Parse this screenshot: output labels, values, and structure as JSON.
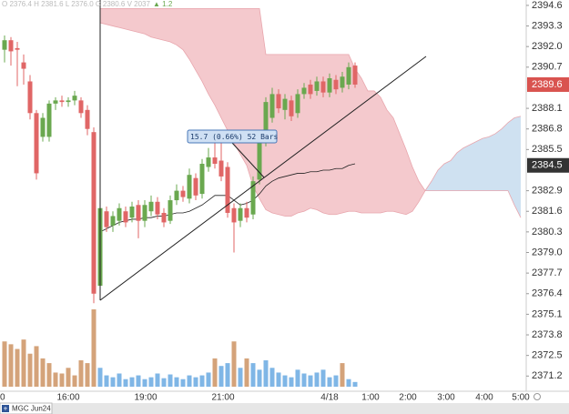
{
  "chart_data": {
    "type": "candlestick",
    "symbol": "MGC Jun24",
    "header": {
      "values": "O 2376.4  H 2381.6  L 2376.0  C 2380.6  V 2037",
      "change": "▲ 1.2"
    },
    "annotation": "15.7 (0.66%) 52 Bars",
    "up_color": "#6aa84f",
    "down_color": "#e06666",
    "candles": {
      "open": [
        2391.8,
        2392.4,
        2391.9,
        2391.0,
        2389.8,
        2387.8,
        2386.3,
        2386.3,
        2388.4,
        2388.6,
        2388.5,
        2388.6,
        2388.6,
        2388.0,
        2386.6,
        2376.9,
        2381.6,
        2380.7,
        2381.0,
        2381.6,
        2381.2,
        2382.0,
        2381.0,
        2381.6,
        2382.2,
        2381.5,
        2381.0,
        2382.3,
        2382.9,
        2382.4,
        2383.7,
        2382.7,
        2384.4,
        2385.0,
        2384.8,
        2384.4,
        2381.8,
        2381.0,
        2381.8,
        2381.4,
        2383.6,
        2386.0,
        2387.5,
        2389.0,
        2388.0,
        2388.6,
        2387.8,
        2389.0,
        2389.6,
        2389.2,
        2389.8,
        2389.1,
        2389.9,
        2389.4,
        2389.6,
        2390.8
      ],
      "high": [
        2392.7,
        2392.6,
        2392.3,
        2391.5,
        2390.2,
        2388.0,
        2387.8,
        2388.6,
        2388.8,
        2388.9,
        2388.8,
        2389.2,
        2388.8,
        2388.3,
        2386.9,
        2382.1,
        2381.9,
        2381.6,
        2382.1,
        2381.9,
        2382.2,
        2382.3,
        2382.3,
        2382.6,
        2382.5,
        2381.8,
        2382.6,
        2383.3,
        2383.2,
        2384.3,
        2384.0,
        2384.9,
        2385.6,
        2385.9,
        2386.0,
        2384.7,
        2382.1,
        2382.1,
        2382.2,
        2383.8,
        2386.3,
        2388.8,
        2389.4,
        2389.3,
        2389.0,
        2388.9,
        2389.3,
        2389.7,
        2389.9,
        2390.1,
        2390.1,
        2390.3,
        2390.2,
        2390.4,
        2391.0,
        2391.0
      ],
      "low": [
        2391.0,
        2390.8,
        2389.5,
        2389.6,
        2387.4,
        2383.6,
        2386.0,
        2386.0,
        2388.0,
        2388.2,
        2388.2,
        2388.3,
        2387.5,
        2386.4,
        2375.8,
        2376.0,
        2380.3,
        2380.3,
        2380.7,
        2380.6,
        2380.9,
        2379.9,
        2380.6,
        2381.3,
        2381.1,
        2380.6,
        2380.8,
        2382.0,
        2382.2,
        2382.1,
        2382.3,
        2382.4,
        2384.1,
        2384.3,
        2383.5,
        2381.2,
        2379.0,
        2380.6,
        2380.9,
        2381.1,
        2383.3,
        2385.7,
        2387.2,
        2387.8,
        2387.4,
        2387.3,
        2387.5,
        2388.7,
        2388.7,
        2388.9,
        2388.8,
        2388.8,
        2389.0,
        2389.1,
        2389.3,
        2389.4
      ],
      "close": [
        2392.4,
        2391.7,
        2391.8,
        2390.6,
        2387.8,
        2384.0,
        2387.5,
        2388.4,
        2388.6,
        2388.5,
        2388.6,
        2388.9,
        2387.8,
        2386.8,
        2376.4,
        2381.8,
        2380.6,
        2381.3,
        2381.8,
        2380.9,
        2381.9,
        2381.0,
        2382.0,
        2382.2,
        2381.4,
        2380.9,
        2382.3,
        2382.9,
        2382.5,
        2383.9,
        2382.6,
        2384.6,
        2385.0,
        2384.6,
        2383.8,
        2381.5,
        2380.9,
        2381.8,
        2381.2,
        2383.5,
        2386.0,
        2388.5,
        2389.0,
        2388.1,
        2388.7,
        2387.6,
        2389.0,
        2389.4,
        2389.0,
        2389.8,
        2389.1,
        2390.0,
        2389.3,
        2390.1,
        2390.7,
        2389.6
      ]
    },
    "volume": {
      "values": [
        48,
        45,
        40,
        50,
        35,
        43,
        30,
        25,
        15,
        14,
        20,
        12,
        28,
        25,
        82,
        20,
        12,
        10,
        14,
        8,
        10,
        12,
        8,
        10,
        14,
        9,
        13,
        10,
        8,
        12,
        10,
        12,
        15,
        30,
        22,
        25,
        48,
        20,
        30,
        25,
        18,
        28,
        20,
        15,
        12,
        10,
        18,
        14,
        12,
        15,
        18,
        10,
        12,
        25,
        8,
        5
      ],
      "colors": [
        "#d4a37a",
        "#d4a37a",
        "#d4a37a",
        "#d4a37a",
        "#d4a37a",
        "#d4a37a",
        "#d4a37a",
        "#d4a37a",
        "#d4a37a",
        "#d4a37a",
        "#d4a37a",
        "#d4a37a",
        "#d4a37a",
        "#d4a37a",
        "#d4a37a",
        "#7fb6e6",
        "#7fb6e6",
        "#7fb6e6",
        "#7fb6e6",
        "#7fb6e6",
        "#7fb6e6",
        "#7fb6e6",
        "#7fb6e6",
        "#7fb6e6",
        "#7fb6e6",
        "#7fb6e6",
        "#7fb6e6",
        "#7fb6e6",
        "#7fb6e6",
        "#7fb6e6",
        "#7fb6e6",
        "#7fb6e6",
        "#7fb6e6",
        "#d4a37a",
        "#7fb6e6",
        "#7fb6e6",
        "#d4a37a",
        "#7fb6e6",
        "#d4a37a",
        "#7fb6e6",
        "#7fb6e6",
        "#7fb6e6",
        "#7fb6e6",
        "#7fb6e6",
        "#7fb6e6",
        "#7fb6e6",
        "#7fb6e6",
        "#7fb6e6",
        "#7fb6e6",
        "#7fb6e6",
        "#7fb6e6",
        "#7fb6e6",
        "#7fb6e6",
        "#d4a37a",
        "#7fb6e6",
        "#7fb6e6"
      ]
    },
    "base_line": {
      "color": "#222222",
      "values": [
        null,
        null,
        null,
        null,
        null,
        null,
        null,
        null,
        null,
        null,
        null,
        null,
        null,
        null,
        null,
        2380.3,
        2380.5,
        2380.7,
        2380.9,
        2381.0,
        2381.1,
        2381.1,
        2381.2,
        2381.2,
        2381.3,
        2381.3,
        2381.4,
        2381.5,
        2381.5,
        2381.6,
        2381.8,
        2382.0,
        2382.3,
        2382.6,
        2382.6,
        2382.6,
        2382.3,
        2382.0,
        2382.1,
        2382.3,
        2382.7,
        2383.2,
        2383.5,
        2383.7,
        2383.8,
        2383.9,
        2384.0,
        2384.0,
        2384.1,
        2384.1,
        2384.2,
        2384.2,
        2384.3,
        2384.3,
        2384.5,
        2384.6
      ]
    },
    "cloud": {
      "bear_color": "#f4c9cd",
      "bull_color": "#cfe1f1",
      "line_color": "#e8a6ad",
      "span_a": [
        null,
        null,
        null,
        null,
        null,
        null,
        null,
        null,
        null,
        null,
        null,
        null,
        null,
        null,
        null,
        2393.5,
        2393.4,
        2393.3,
        2393.2,
        2393.1,
        2393.0,
        2392.9,
        2392.8,
        2392.6,
        2392.5,
        2392.4,
        2392.3,
        2392.1,
        2391.8,
        2391.2,
        2390.5,
        2389.8,
        2389.0,
        2388.3,
        2387.5,
        2386.7,
        2385.9,
        2385.2,
        2384.5,
        2383.2,
        2382.4,
        2381.7,
        2381.5,
        2381.4,
        2381.3,
        2381.3,
        2381.5,
        2381.6,
        2381.8,
        2381.7,
        2381.5,
        2381.4,
        2381.4,
        2381.5,
        2381.6,
        2381.6,
        2381.5,
        2381.5,
        2381.5,
        2381.5,
        2381.6,
        2381.6,
        2381.5,
        2381.4,
        2381.6,
        2382.2,
        2382.9,
        2383.5,
        2384.2,
        2384.6,
        2384.8,
        2385.3,
        2385.6,
        2385.8,
        2386.0,
        2386.2,
        2386.3,
        2386.5,
        2386.8,
        2387.2,
        2387.5,
        2387.6
      ],
      "span_b": [
        null,
        null,
        null,
        null,
        null,
        null,
        null,
        null,
        null,
        null,
        null,
        null,
        null,
        null,
        null,
        2394.4,
        2394.4,
        2394.4,
        2394.4,
        2394.4,
        2394.4,
        2394.4,
        2394.4,
        2394.4,
        2394.4,
        2394.4,
        2394.4,
        2394.4,
        2394.4,
        2394.4,
        2394.4,
        2394.4,
        2394.4,
        2394.4,
        2394.4,
        2394.4,
        2394.4,
        2394.4,
        2394.4,
        2394.4,
        2394.4,
        2391.5,
        2391.5,
        2391.5,
        2391.5,
        2391.5,
        2391.5,
        2391.5,
        2391.5,
        2391.5,
        2391.5,
        2391.5,
        2391.5,
        2391.5,
        2391.5,
        2390.6,
        2390.0,
        2389.2,
        2389.2,
        2388.8,
        2388.0,
        2387.5,
        2386.5,
        2385.5,
        2384.4,
        2383.5,
        2382.9,
        2382.9,
        2382.9,
        2382.9,
        2382.9,
        2382.9,
        2382.9,
        2382.9,
        2382.9,
        2382.9,
        2382.9,
        2382.9,
        2382.9,
        2382.9,
        2382.0,
        2381.2
      ]
    },
    "ylim": [
      2370.24,
      2394.94
    ],
    "yticks": [
      2394.6,
      2393.3,
      {
        "value": 2392.0,
        "label": "2392.0"
      },
      2390.7,
      2388.1,
      2386.8,
      2385.5,
      2382.9,
      2381.6,
      2380.3,
      {
        "value": 2379.0,
        "label": "2379.0"
      },
      2377.7,
      2376.4,
      2375.1,
      2373.8,
      2372.5,
      2371.2
    ],
    "price_markers": [
      {
        "value": 2389.6,
        "color": "#d9534f"
      },
      {
        "value": 2384.5,
        "color": "#333333"
      }
    ],
    "x_labels": [
      "0",
      "16:00",
      "19:00",
      "21:00",
      "4/18",
      "1:00",
      "2:00",
      "3:00",
      "4:00",
      "5:00"
    ]
  }
}
